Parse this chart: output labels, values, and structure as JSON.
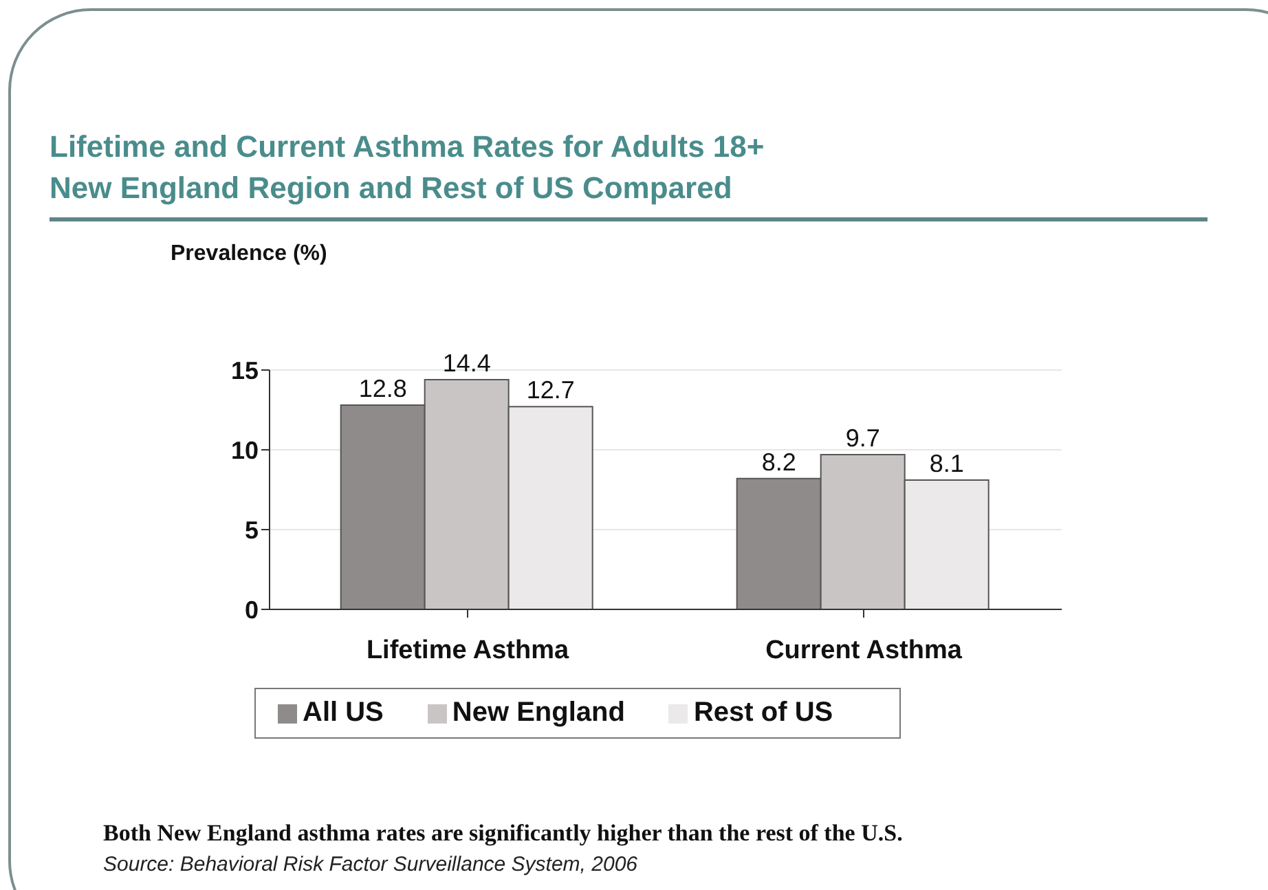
{
  "chart_data": {
    "type": "bar",
    "title": "Lifetime and Current Asthma Rates for Adults 18+\nNew England Region and Rest of US Compared",
    "ylabel": "Prevalence (%)",
    "categories": [
      "Lifetime Asthma",
      "Current Asthma"
    ],
    "series": [
      {
        "name": "All US",
        "color": "#8f8b8b",
        "values": [
          12.8,
          8.2
        ]
      },
      {
        "name": "New England",
        "color": "#c9c5c5",
        "values": [
          14.4,
          9.7
        ]
      },
      {
        "name": "Rest of US",
        "color": "#ebe9e9",
        "values": [
          12.7,
          8.1
        ]
      }
    ],
    "ylim": [
      0,
      15
    ],
    "yticks": [
      0,
      5,
      10,
      15
    ],
    "grid": "y",
    "legend": "bottom",
    "data_labels": true,
    "annotations": [
      "Both New England asthma rates are significantly higher than the rest of the U.S.",
      "Source: Behavioral Risk Factor Surveillance System, 2006"
    ]
  }
}
